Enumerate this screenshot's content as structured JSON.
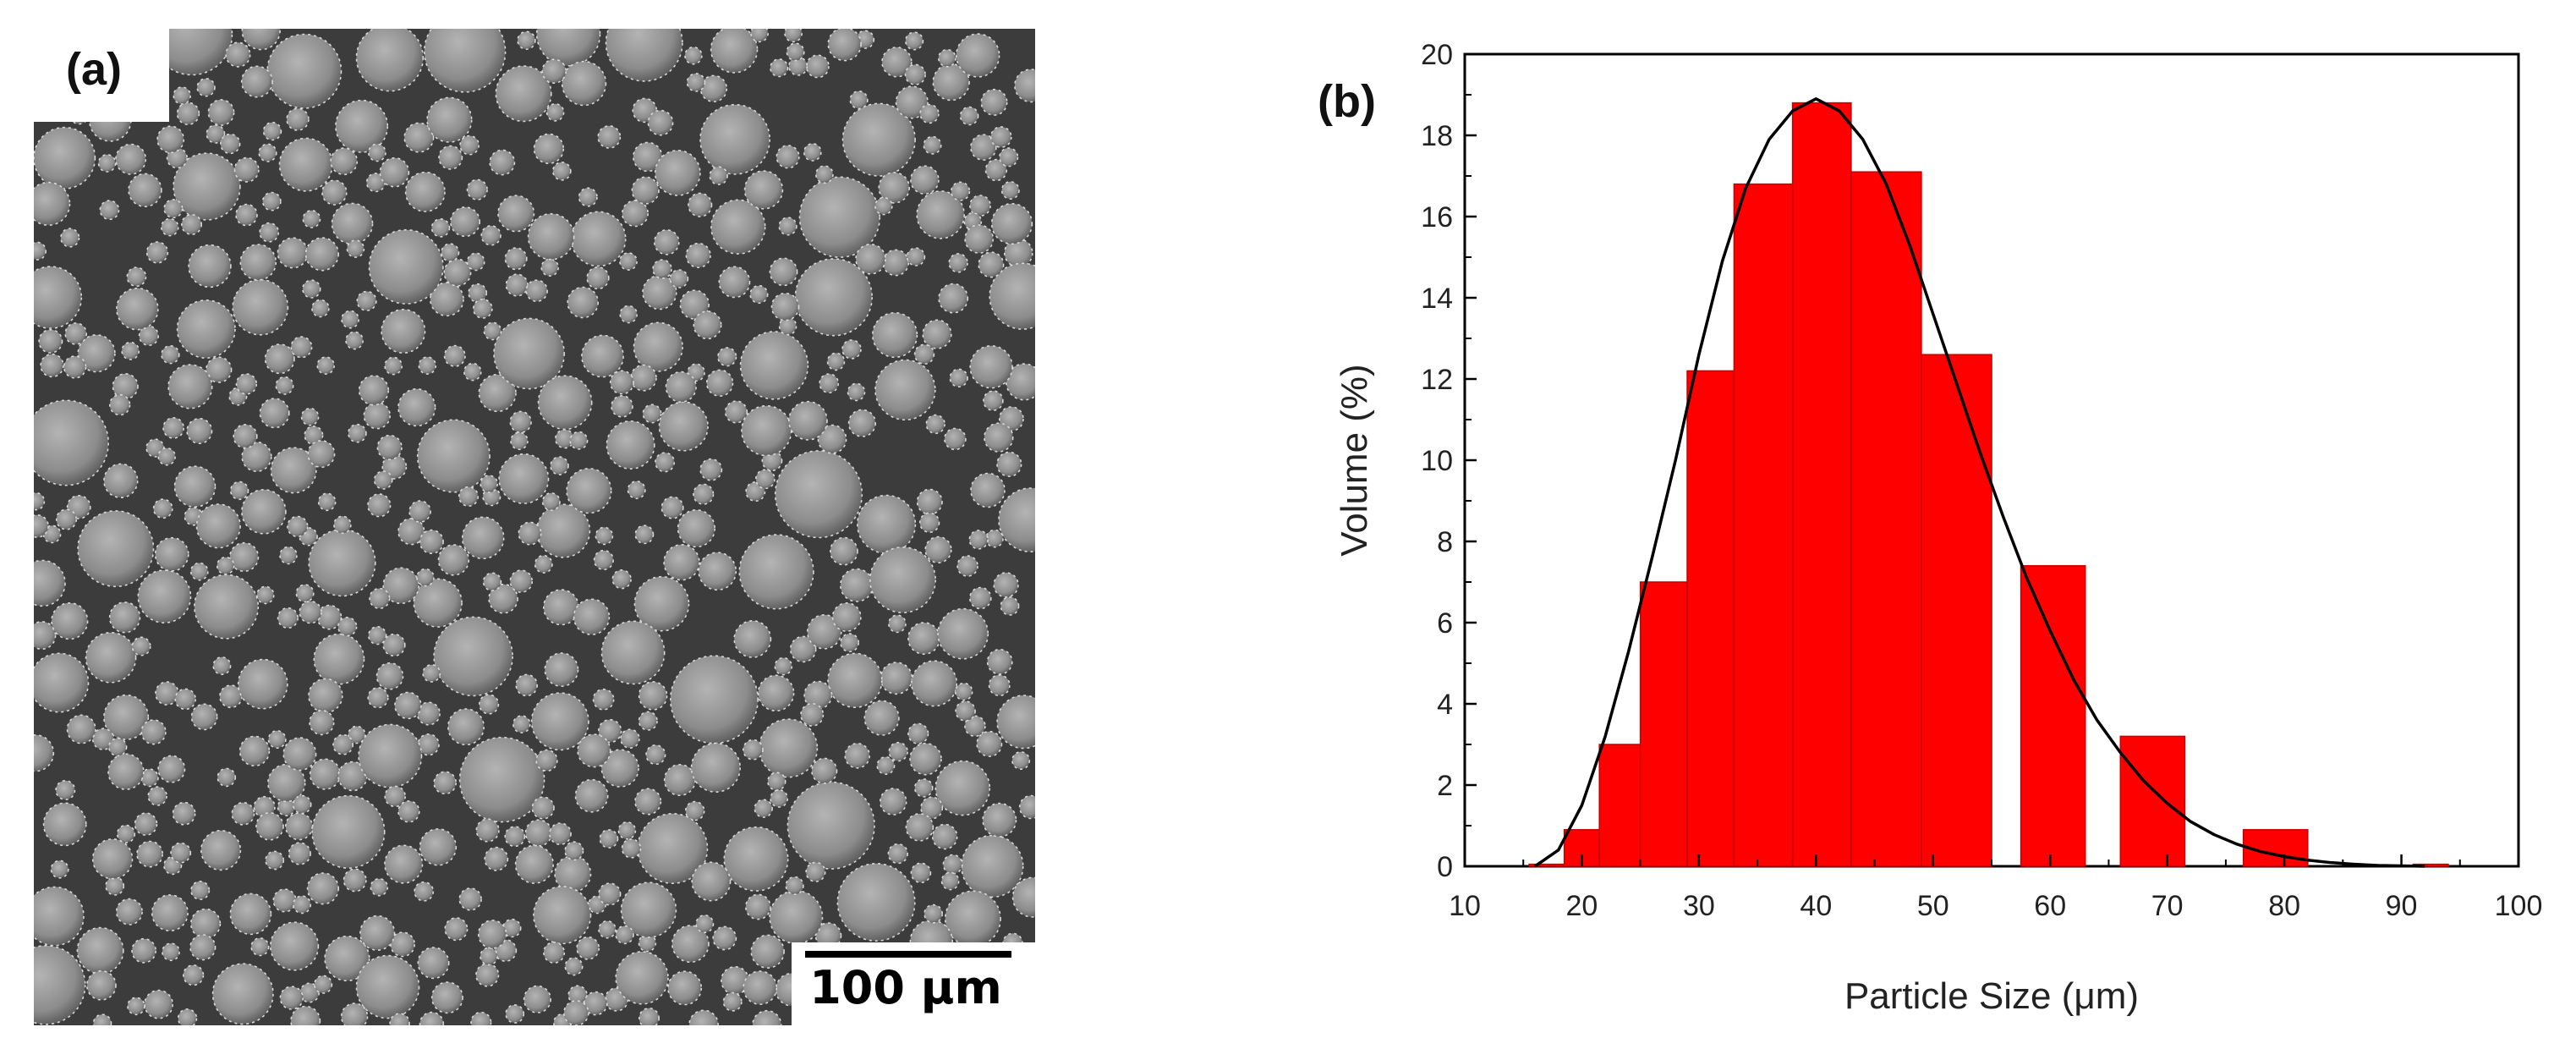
{
  "panel_a": {
    "label": "(a)",
    "scale_bar_text": "100 μm"
  },
  "chart_data": {
    "type": "bar",
    "panel_label": "(b)",
    "xlabel": "Particle Size (μm)",
    "ylabel": "Volume (%)",
    "xlim": [
      10,
      100
    ],
    "ylim": [
      0,
      20
    ],
    "xticks": [
      10,
      20,
      30,
      40,
      50,
      60,
      70,
      80,
      90,
      100
    ],
    "yticks": [
      0,
      2,
      4,
      6,
      8,
      10,
      12,
      14,
      16,
      18,
      20
    ],
    "bar_color": "#ff0000",
    "fit_color": "#000000",
    "bars": [
      {
        "x0": 15.5,
        "x1": 18.5,
        "value": 0.05
      },
      {
        "x0": 18.5,
        "x1": 21.5,
        "value": 0.9
      },
      {
        "x0": 21.5,
        "x1": 25.0,
        "value": 3.0
      },
      {
        "x0": 25.0,
        "x1": 29.0,
        "value": 7.0
      },
      {
        "x0": 29.0,
        "x1": 33.0,
        "value": 12.2
      },
      {
        "x0": 33.0,
        "x1": 38.0,
        "value": 16.8
      },
      {
        "x0": 38.0,
        "x1": 43.0,
        "value": 18.8
      },
      {
        "x0": 43.0,
        "x1": 49.0,
        "value": 17.1
      },
      {
        "x0": 49.0,
        "x1": 55.0,
        "value": 12.6
      },
      {
        "x0": 57.5,
        "x1": 63.0,
        "value": 7.4
      },
      {
        "x0": 66.0,
        "x1": 71.5,
        "value": 3.2
      },
      {
        "x0": 76.5,
        "x1": 82.0,
        "value": 0.9
      },
      {
        "x0": 91.0,
        "x1": 94.0,
        "value": 0.05
      }
    ],
    "fit_curve": {
      "name": "fit",
      "x": [
        16,
        18,
        20,
        22,
        24,
        26,
        28,
        30,
        32,
        34,
        36,
        38,
        40,
        42,
        44,
        46,
        48,
        50,
        52,
        54,
        56,
        58,
        60,
        62,
        64,
        66,
        68,
        70,
        72,
        74,
        76,
        78,
        80,
        82,
        84,
        86,
        88,
        90,
        92
      ],
      "y": [
        0.0,
        0.4,
        1.5,
        3.2,
        5.3,
        7.6,
        10.0,
        12.6,
        14.9,
        16.7,
        17.9,
        18.6,
        18.9,
        18.6,
        17.9,
        16.8,
        15.3,
        13.6,
        11.9,
        10.2,
        8.6,
        7.1,
        5.8,
        4.6,
        3.6,
        2.8,
        2.1,
        1.55,
        1.1,
        0.78,
        0.54,
        0.36,
        0.24,
        0.15,
        0.09,
        0.05,
        0.02,
        0.01,
        0.0
      ]
    }
  }
}
